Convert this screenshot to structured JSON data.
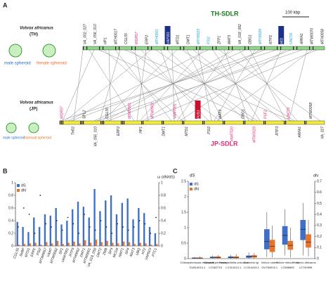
{
  "diagram": {
    "panel": "A",
    "scale": "100 kbp",
    "th": {
      "title": "TH-SDLR",
      "species": "Volvox africanus",
      "strain": "(TH)",
      "spheroids": [
        "male spheroid",
        "female spheroid"
      ],
      "genes": [
        {
          "label": "VA_002_027",
          "color": "#222"
        },
        {
          "label": "VA_056_010",
          "color": "#222"
        },
        {
          "label": "HP1",
          "color": "#222"
        },
        {
          "label": "MTH0017",
          "color": "#222"
        },
        {
          "label": "CGL55",
          "color": "#222"
        },
        {
          "label": "WDR57",
          "color": "#e0287a"
        },
        {
          "label": "ERP2",
          "color": "#222"
        },
        {
          "label": "MTH0001",
          "color": "#1aa3d9"
        },
        {
          "label": "VAP001",
          "color": "#ffffff",
          "box": "#1a2f8a"
        },
        {
          "label": "MTD1",
          "color": "#222"
        },
        {
          "label": "DMT1",
          "color": "#222"
        },
        {
          "label": "MTH0023",
          "color": "#1aa3d9"
        },
        {
          "label": "PSI2",
          "color": "#1aa3d9"
        },
        {
          "label": "ZFP1",
          "color": "#222"
        },
        {
          "label": "MAT3",
          "color": "#222"
        },
        {
          "label": "VA_018_082",
          "color": "#222"
        },
        {
          "label": "DBG1",
          "color": "#222"
        },
        {
          "label": "MTH0029",
          "color": "#1aa3d9"
        },
        {
          "label": "RTP3",
          "color": "#222"
        },
        {
          "label": "MID",
          "color": "#ffffff",
          "box": "#1a2f8a"
        },
        {
          "label": "UNC55",
          "color": "#1aa3d9"
        },
        {
          "label": "ARFA1",
          "color": "#222"
        },
        {
          "label": "MTW0070",
          "color": "#222"
        },
        {
          "label": "MTH0058",
          "color": "#222"
        }
      ]
    },
    "jp": {
      "title": "JP-SDLR",
      "species": "Volvox africanus",
      "strain": "(JP)",
      "spheroids": [
        "male spheroid",
        "bisexual spheroid"
      ],
      "genes": [
        {
          "label": "WDR57",
          "color": "#e0287a"
        },
        {
          "label": "TH02",
          "color": "#222"
        },
        {
          "label": "SPL2",
          "color": "#222"
        },
        {
          "label": "VA_056_010",
          "color": "#222"
        },
        {
          "label": "CGL55",
          "color": "#222"
        },
        {
          "label": "ERP2",
          "color": "#222"
        },
        {
          "label": "MTW0001",
          "color": "#e0287a"
        },
        {
          "label": "HP1",
          "color": "#222"
        },
        {
          "label": "MTW0002",
          "color": "#e0287a"
        },
        {
          "label": "DMT1",
          "color": "#222"
        },
        {
          "label": "VAM7001",
          "color": "#e0287a"
        },
        {
          "label": "MTD1",
          "color": "#222"
        },
        {
          "label": "FUS1",
          "color": "#ffffff",
          "box": "#c8102e"
        },
        {
          "label": "PSI2",
          "color": "#222"
        },
        {
          "label": "MAT3",
          "color": "#222"
        },
        {
          "label": "VAM7020",
          "color": "#e0287a"
        },
        {
          "label": "DBG1",
          "color": "#222"
        },
        {
          "label": "MTW0029",
          "color": "#e0287a"
        },
        {
          "label": "PSF2",
          "color": "#e0287a"
        },
        {
          "label": "RTP3",
          "color": "#222"
        },
        {
          "label": "UNC55",
          "color": "#e0287a"
        },
        {
          "label": "ARFA1",
          "color": "#222"
        },
        {
          "label": "MTW0058",
          "color": "#222"
        },
        {
          "label": "VA_027",
          "color": "#222"
        }
      ]
    }
  },
  "chart_data": [
    {
      "type": "bar",
      "panel": "B",
      "y2label": "ω (dN/dS)",
      "categories": [
        "CGL55",
        "SeBP",
        "MTD1",
        "ERP2",
        "PSI2",
        "MTW0057",
        "VAM7",
        "MTW0062",
        "SP1",
        "VAM7001",
        "RTP3",
        "MTH0052",
        "DMT1",
        "MTW0001",
        "VA_018_058",
        "DMT2",
        "ZMB",
        "SP3",
        "MCD4",
        "NMT1",
        "SP4",
        "MAT3",
        "UBQ",
        "HT2",
        "VAP023",
        "PTC1"
      ],
      "series": [
        {
          "name": "dS",
          "color": "#3f6fc6",
          "values": [
            0.38,
            0.3,
            0.22,
            0.45,
            0.3,
            0.5,
            0.48,
            0.6,
            0.34,
            0.4,
            0.58,
            0.7,
            0.62,
            0.45,
            0.9,
            0.55,
            0.72,
            0.8,
            0.5,
            0.68,
            0.75,
            0.42,
            0.6,
            0.52,
            0.3,
            0.2
          ]
        },
        {
          "name": "dN",
          "color": "#e8742a",
          "values": [
            0.02,
            0.03,
            0.04,
            0.05,
            0.02,
            0.06,
            0.04,
            0.08,
            0.03,
            0.05,
            0.07,
            0.04,
            0.09,
            0.05,
            0.1,
            0.06,
            0.08,
            0.05,
            0.04,
            0.07,
            0.06,
            0.03,
            0.05,
            0.04,
            0.02,
            0.03
          ]
        },
        {
          "name": "ω (dN/dS)",
          "color": "#222",
          "axis": "y2",
          "values": [
            0.3,
            0.6,
            0.5,
            0.2,
            0.8,
            0.35,
            0.3,
            0.4,
            0.25,
            0.45,
            0.35,
            0.2,
            0.5,
            0.3,
            0.25,
            0.4,
            0.3,
            0.2,
            0.35,
            0.3,
            0.25,
            0.3,
            0.4,
            0.35,
            0.2,
            0.45
          ]
        }
      ],
      "ylim": [
        0,
        1
      ],
      "yticks": [
        0,
        0.2,
        0.4,
        0.6,
        0.8,
        1
      ],
      "y2lim": [
        0,
        1
      ],
      "y2ticks": [
        0,
        0.2,
        0.4,
        0.6,
        0.8,
        1
      ]
    },
    {
      "type": "box",
      "panel": "C",
      "ylabel": "dS",
      "y2label": "dN",
      "categories": [
        "Chlamydomonas reinhardtii",
        "Gonium pectorale",
        "Yamagishiella unicocca",
        "Eudorina sp.",
        "Volvox carteri",
        "Volvox reticuliferus",
        "Volvox africanus"
      ],
      "sublabels": [
        "GU814014.1",
        "LC062719",
        "LC314413.1",
        "LC314415.1",
        "GU784915.1",
        "LC588663",
        "LC749396"
      ],
      "series": [
        {
          "name": "dS",
          "color": "#3f6fc6",
          "values": [
            {
              "min": 0,
              "q1": 0.01,
              "median": 0.02,
              "q3": 0.03,
              "max": 0.05
            },
            {
              "min": 0,
              "q1": 0.02,
              "median": 0.04,
              "q3": 0.06,
              "max": 0.1
            },
            {
              "min": 0,
              "q1": 0.02,
              "median": 0.04,
              "q3": 0.07,
              "max": 0.12
            },
            {
              "min": 0,
              "q1": 0.03,
              "median": 0.06,
              "q3": 0.1,
              "max": 0.2
            },
            {
              "min": 0.05,
              "q1": 0.3,
              "median": 0.55,
              "q3": 0.95,
              "max": 1.5
            },
            {
              "min": 0.1,
              "q1": 0.45,
              "median": 0.75,
              "q3": 1.05,
              "max": 1.6
            },
            {
              "min": 0.1,
              "q1": 0.6,
              "median": 0.95,
              "q3": 1.25,
              "max": 1.8
            }
          ]
        },
        {
          "name": "dN",
          "color": "#e8742a",
          "values": [
            {
              "min": 0,
              "q1": 0.002,
              "median": 0.005,
              "q3": 0.01,
              "max": 0.02
            },
            {
              "min": 0,
              "q1": 0.005,
              "median": 0.01,
              "q3": 0.02,
              "max": 0.03
            },
            {
              "min": 0,
              "q1": 0.005,
              "median": 0.01,
              "q3": 0.02,
              "max": 0.04
            },
            {
              "min": 0,
              "q1": 0.01,
              "median": 0.02,
              "q3": 0.03,
              "max": 0.05
            },
            {
              "min": 0.01,
              "q1": 0.06,
              "median": 0.11,
              "q3": 0.17,
              "max": 0.3
            },
            {
              "min": 0.01,
              "q1": 0.08,
              "median": 0.12,
              "q3": 0.16,
              "max": 0.28
            },
            {
              "min": 0.02,
              "q1": 0.1,
              "median": 0.15,
              "q3": 0.22,
              "max": 0.35
            }
          ]
        }
      ],
      "ylim": [
        0,
        2.5
      ],
      "yticks": [
        0,
        0.5,
        1,
        1.5,
        2,
        2.5
      ],
      "y2lim": [
        0,
        0.7
      ],
      "y2ticks": [
        0,
        0.1,
        0.2,
        0.3,
        0.4,
        0.5,
        0.6,
        0.7
      ]
    }
  ]
}
